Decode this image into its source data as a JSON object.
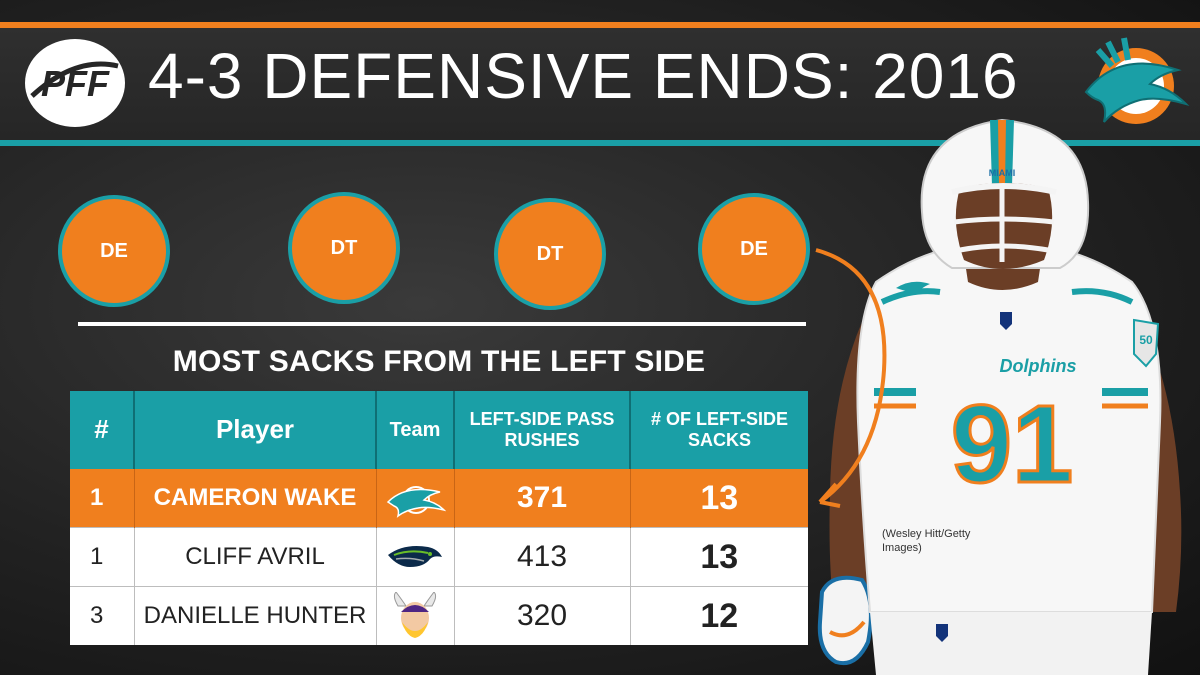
{
  "header": {
    "title": "4-3 DEFENSIVE ENDS: 2016",
    "brand_logo": "PFF"
  },
  "positions": [
    {
      "label": "DE"
    },
    {
      "label": "DT"
    },
    {
      "label": "DT"
    },
    {
      "label": "DE"
    }
  ],
  "table": {
    "heading": "MOST SACKS FROM THE LEFT SIDE",
    "columns": [
      "#",
      "Player",
      "Team",
      "LEFT-SIDE PASS RUSHES",
      "# OF LEFT-SIDE SACKS"
    ],
    "rows": [
      {
        "rank": "1",
        "player": "CAMERON WAKE",
        "team_icon": "dolphins-logo-icon",
        "rushes": "371",
        "sacks": "13"
      },
      {
        "rank": "1",
        "player": "CLIFF AVRIL",
        "team_icon": "seahawks-logo-icon",
        "rushes": "413",
        "sacks": "13"
      },
      {
        "rank": "3",
        "player": "DANIELLE HUNTER",
        "team_icon": "vikings-logo-icon",
        "rushes": "320",
        "sacks": "12"
      }
    ]
  },
  "photo": {
    "credit": "(Wesley Hitt/Getty Images)",
    "jersey_number": "91",
    "jersey_text": "Dolphins",
    "helmet_text": "MIAMI",
    "patch_number": "50"
  },
  "colors": {
    "orange": "#f07f1e",
    "aqua": "#1a9fa6",
    "dark": "#262626"
  }
}
